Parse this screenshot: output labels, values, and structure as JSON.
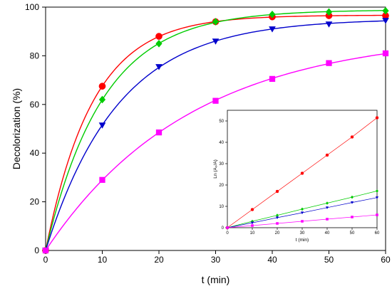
{
  "chart_data": [
    {
      "type": "line",
      "xlabel": "t (min)",
      "ylabel": "Decolorization (%)",
      "xlim": [
        0,
        60
      ],
      "ylim": [
        0,
        100
      ],
      "xticks": [
        0,
        10,
        20,
        30,
        40,
        50,
        60
      ],
      "yticks": [
        0,
        20,
        40,
        60,
        80,
        100
      ],
      "grid": false,
      "x": [
        0,
        10,
        20,
        30,
        40,
        50,
        60
      ],
      "series": [
        {
          "color": "#ff0000",
          "marker": "circle",
          "values": [
            0,
            67.5,
            88,
            94,
            96,
            96.5,
            96.5
          ]
        },
        {
          "color": "#00cc00",
          "marker": "diamond",
          "values": [
            0,
            62,
            85,
            94,
            97,
            98,
            98.5
          ]
        },
        {
          "color": "#0000cc",
          "marker": "triangle-down",
          "values": [
            0,
            51.5,
            75.5,
            86,
            91,
            93,
            94.5
          ]
        },
        {
          "color": "#ff00ff",
          "marker": "square",
          "values": [
            0,
            29,
            48.5,
            61.5,
            70.5,
            77,
            81
          ]
        }
      ]
    },
    {
      "type": "line",
      "xlabel": "t (min)",
      "ylabel": "Ln (A₀/A)",
      "xlim": [
        0,
        60
      ],
      "ylim": [
        0,
        55
      ],
      "xticks": [
        0,
        10,
        20,
        30,
        40,
        50,
        60
      ],
      "yticks": [
        0,
        10,
        20,
        30,
        40,
        50
      ],
      "grid": false,
      "x": [
        0,
        10,
        20,
        30,
        40,
        50,
        60
      ],
      "series": [
        {
          "color": "#ff0000",
          "marker": "circle",
          "values": [
            0,
            8.5,
            17,
            25.5,
            34,
            42.5,
            51.5
          ]
        },
        {
          "color": "#00cc00",
          "marker": "diamond",
          "values": [
            0,
            3,
            5.8,
            8.7,
            11.5,
            14.3,
            17.2
          ]
        },
        {
          "color": "#0000cc",
          "marker": "triangle-down",
          "values": [
            0,
            2.3,
            4.7,
            7,
            9.4,
            11.8,
            14.1
          ]
        },
        {
          "color": "#ff00ff",
          "marker": "square",
          "values": [
            0,
            1,
            2,
            3,
            4,
            5,
            6
          ]
        }
      ]
    }
  ]
}
